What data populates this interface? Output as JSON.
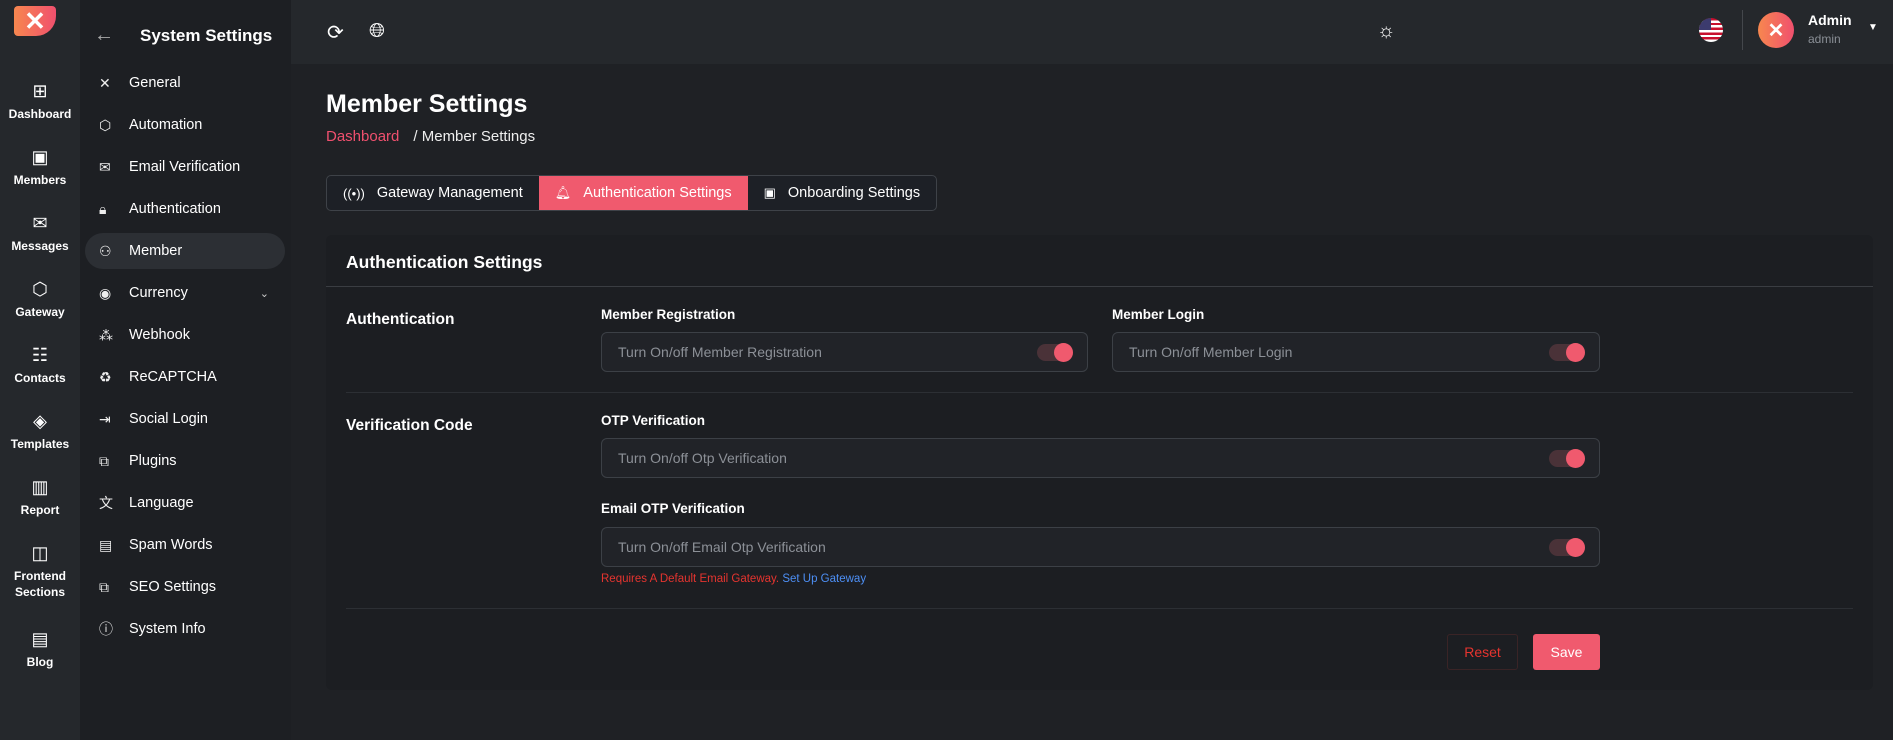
{
  "rail": {
    "items": [
      {
        "label": "Dashboard",
        "icon": "dashboard-icon",
        "glyph": "⊞"
      },
      {
        "label": "Members",
        "icon": "members-icon",
        "glyph": "▣"
      },
      {
        "label": "Messages",
        "icon": "messages-icon",
        "glyph": "✉"
      },
      {
        "label": "Gateway",
        "icon": "gateway-icon",
        "glyph": "⬡"
      },
      {
        "label": "Contacts",
        "icon": "contacts-icon",
        "glyph": "☷"
      },
      {
        "label": "Templates",
        "icon": "templates-icon",
        "glyph": "◈"
      },
      {
        "label": "Report",
        "icon": "report-icon",
        "glyph": "▥"
      },
      {
        "label": "Frontend Sections",
        "icon": "frontend-sections-icon",
        "glyph": "◫"
      },
      {
        "label": "Blog",
        "icon": "blog-icon",
        "glyph": "▤"
      }
    ]
  },
  "sub": {
    "title": "System Settings",
    "items": [
      {
        "label": "General",
        "glyph": "✕"
      },
      {
        "label": "Automation",
        "glyph": "⬡"
      },
      {
        "label": "Email Verification",
        "glyph": "✉"
      },
      {
        "label": "Authentication",
        "glyph": "🔒︎"
      },
      {
        "label": "Member",
        "glyph": "⚇"
      },
      {
        "label": "Currency",
        "glyph": "◉"
      },
      {
        "label": "Webhook",
        "glyph": "⁂"
      },
      {
        "label": "ReCAPTCHA",
        "glyph": "♻"
      },
      {
        "label": "Social Login",
        "glyph": "⇥"
      },
      {
        "label": "Plugins",
        "glyph": "⧉"
      },
      {
        "label": "Language",
        "glyph": "文"
      },
      {
        "label": "Spam Words",
        "glyph": "▤"
      },
      {
        "label": "SEO Settings",
        "glyph": "⧉"
      },
      {
        "label": "System Info",
        "glyph": "ⓘ"
      }
    ],
    "active": "Member"
  },
  "topbar": {
    "user_name": "Admin",
    "user_role": "admin"
  },
  "page": {
    "title": "Member Settings",
    "breadcrumb": [
      "Dashboard",
      "/ Member Settings"
    ]
  },
  "tabs": [
    {
      "label": "Gateway Management",
      "glyph": "((•))"
    },
    {
      "label": "Authentication Settings",
      "glyph": "🔔︎"
    },
    {
      "label": "Onboarding Settings",
      "glyph": "▣"
    }
  ],
  "active_tab": "Authentication Settings",
  "card": {
    "title": "Authentication Settings",
    "sections": [
      {
        "label": "Authentication"
      },
      {
        "label": "Verification Code"
      }
    ],
    "fields": [
      {
        "label": "Member Registration",
        "placeholder": "Turn On/off Member Registration",
        "on": true
      },
      {
        "label": "Member Login",
        "placeholder": "Turn On/off Member Login",
        "on": true
      },
      {
        "label": "OTP Verification",
        "placeholder": "Turn On/off Otp Verification",
        "on": true
      },
      {
        "label": "Email OTP Verification",
        "placeholder": "Turn On/off Email Otp Verification",
        "on": true
      }
    ],
    "error": "Requires A Default Email Gateway.",
    "error_link": "Set Up Gateway",
    "reset": "Reset",
    "save": "Save"
  },
  "colors": {
    "accent": "#f05a6e",
    "error": "#e5342f",
    "link": "#4d8ff5"
  }
}
